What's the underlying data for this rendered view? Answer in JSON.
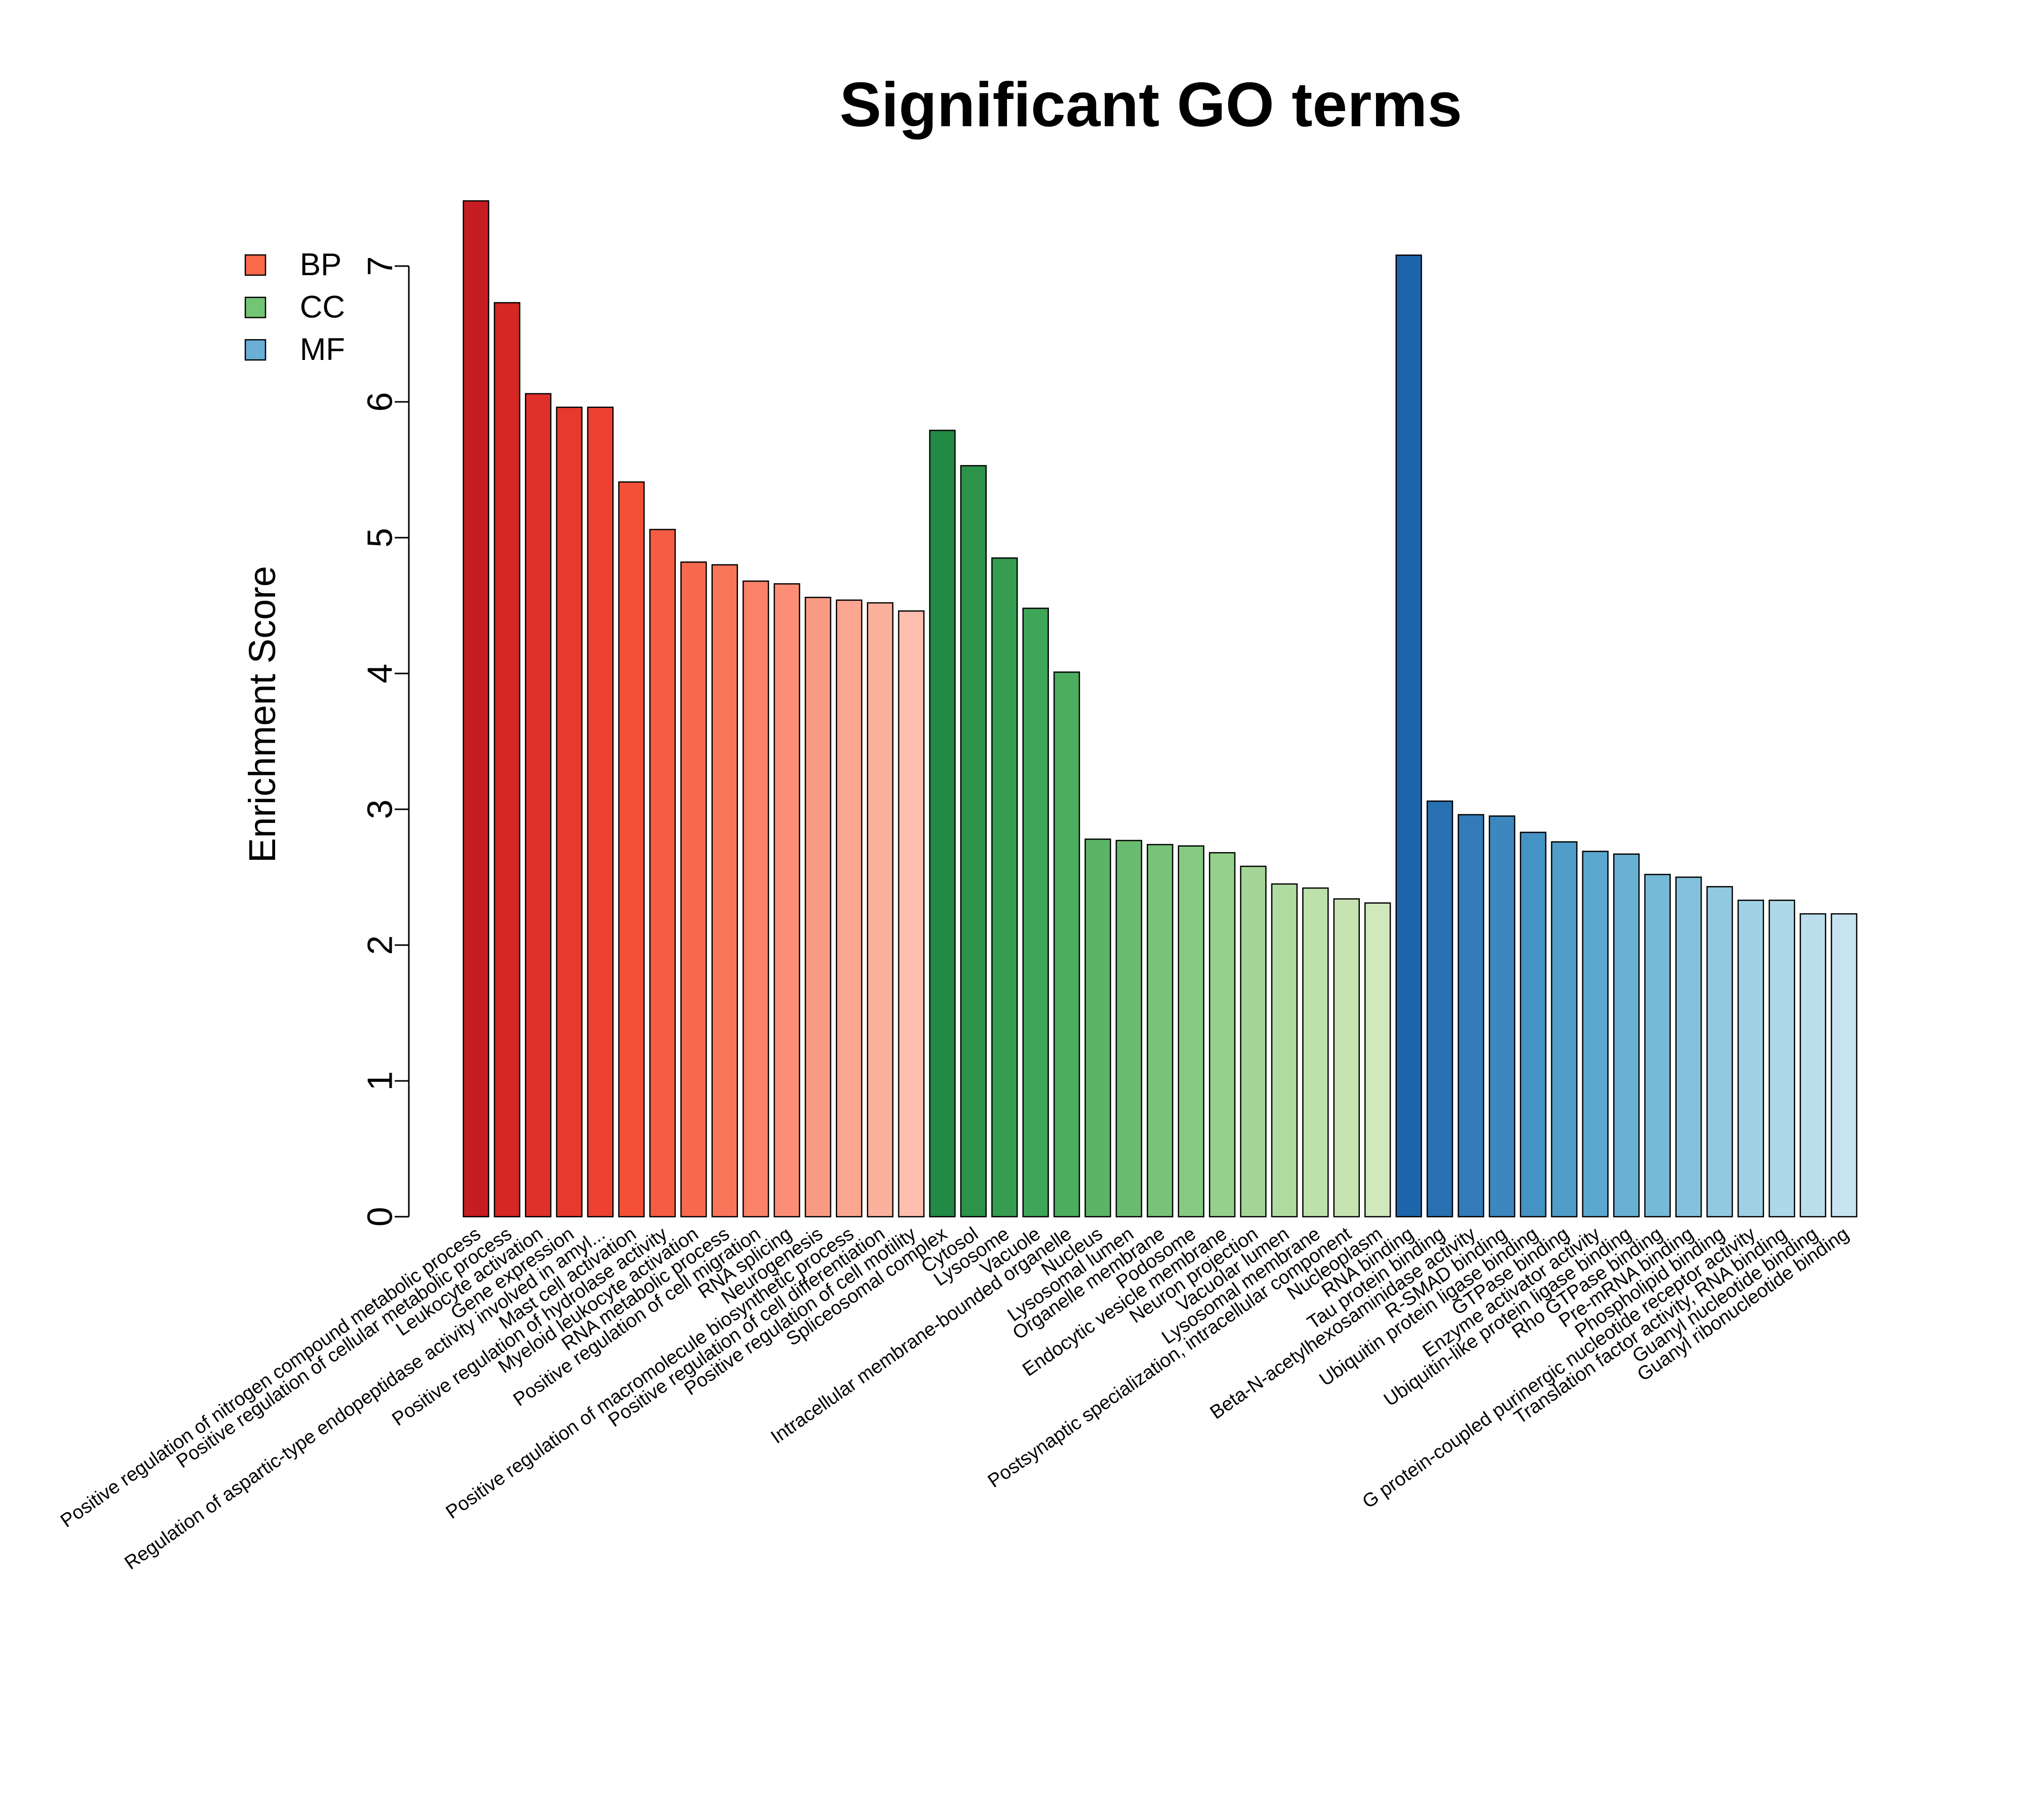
{
  "chart_data": {
    "type": "bar",
    "title": "Significant GO terms",
    "xlabel": "",
    "ylabel": "Enrichment Score",
    "ylim": [
      0,
      7
    ],
    "yticks": [
      "0",
      "1",
      "2",
      "3",
      "4",
      "5",
      "6",
      "7"
    ],
    "grid": false,
    "legend": {
      "placement": "top-left",
      "entries": [
        {
          "label": "BP",
          "color": "#fb6a4a"
        },
        {
          "label": "CC",
          "color": "#74c476"
        },
        {
          "label": "MF",
          "color": "#6baed6"
        }
      ]
    },
    "categories": [
      "Positive regulation of nitrogen compound metabolic process",
      "Positive regulation of cellular metabolic process",
      "Leukocyte activation",
      "Gene expression",
      "Regulation of aspartic-type endopeptidase activity involved in amyl...",
      "Mast cell activation",
      "Positive regulation of hydrolase activity",
      "Myeloid leukocyte activation",
      "RNA metabolic process",
      "Positive regulation of cell migration",
      "RNA splicing",
      "Neurogenesis",
      "Positive regulation of macromolecule biosynthetic process",
      "Positive regulation of cell differentiation",
      "Positive regulation of cell motility",
      "Spliceosomal complex",
      "Cytosol",
      "Lysosome",
      "Vacuole",
      "Intracellular membrane-bounded organelle",
      "Nucleus",
      "Lysosomal lumen",
      "Organelle membrane",
      "Podosome",
      "Endocytic vesicle membrane",
      "Neuron projection",
      "Vacuolar lumen",
      "Lysosomal membrane",
      "Postsynaptic specialization, intracellular component",
      "Nucleoplasm",
      "RNA binding",
      "Tau protein binding",
      "Beta-N-acetylhexosaminidase activity",
      "R-SMAD binding",
      "Ubiquitin protein ligase binding",
      "GTPase binding",
      "Enzyme activator activity",
      "Ubiquitin-like protein ligase binding",
      "Rho GTPase binding",
      "Pre-mRNA binding",
      "Phospholipid binding",
      "G protein-coupled purinergic nucleotide receptor activity",
      "Translation factor activity, RNA binding",
      "Guanyl nucleotide binding",
      "Guanyl ribonucleotide binding"
    ],
    "groups": [
      "BP",
      "BP",
      "BP",
      "BP",
      "BP",
      "BP",
      "BP",
      "BP",
      "BP",
      "BP",
      "BP",
      "BP",
      "BP",
      "BP",
      "BP",
      "CC",
      "CC",
      "CC",
      "CC",
      "CC",
      "CC",
      "CC",
      "CC",
      "CC",
      "CC",
      "CC",
      "CC",
      "CC",
      "CC",
      "CC",
      "MF",
      "MF",
      "MF",
      "MF",
      "MF",
      "MF",
      "MF",
      "MF",
      "MF",
      "MF",
      "MF",
      "MF",
      "MF",
      "MF",
      "MF"
    ],
    "values": [
      7.48,
      6.73,
      6.06,
      5.96,
      5.96,
      5.41,
      5.06,
      4.82,
      4.8,
      4.68,
      4.66,
      4.56,
      4.54,
      4.52,
      4.46,
      5.79,
      5.53,
      4.85,
      4.48,
      4.01,
      2.78,
      2.77,
      2.74,
      2.73,
      2.68,
      2.58,
      2.45,
      2.42,
      2.34,
      2.31,
      7.08,
      3.06,
      2.96,
      2.95,
      2.83,
      2.76,
      2.69,
      2.67,
      2.52,
      2.5,
      2.43,
      2.33,
      2.33,
      2.23,
      2.23
    ],
    "colors": [
      "#c61d22",
      "#d52723",
      "#e0302a",
      "#e8392e",
      "#ee4132",
      "#f35037",
      "#f65c42",
      "#f86a4d",
      "#f9765a",
      "#fa8267",
      "#fb8e75",
      "#fb9a82",
      "#fca590",
      "#fcb19d",
      "#fdbfad",
      "#228a44",
      "#2b934a",
      "#359c51",
      "#3fa558",
      "#4cad5f",
      "#5bb567",
      "#69bc6f",
      "#77c378",
      "#86ca82",
      "#95d08c",
      "#a3d696",
      "#b0dba0",
      "#bde1aa",
      "#c6e4b2",
      "#d0e8bb",
      "#1f65ab",
      "#2870b2",
      "#327bb8",
      "#3c87be",
      "#4592c4",
      "#509dca",
      "#5ba7cf",
      "#68b0d4",
      "#76b9d8",
      "#84c1dc",
      "#92c9e0",
      "#a0d0e4",
      "#aed7e8",
      "#bbdeec",
      "#c8e3f0"
    ]
  }
}
